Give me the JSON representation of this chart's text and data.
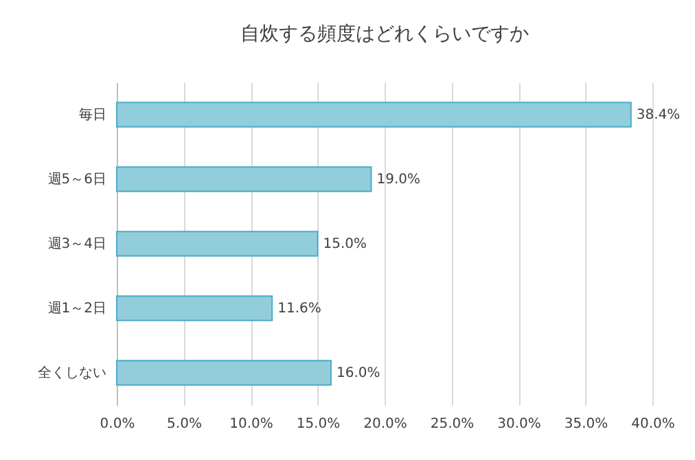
{
  "chart_data": {
    "type": "bar",
    "orientation": "horizontal",
    "title": "自炊する頻度はどれくらいですか",
    "categories": [
      "毎日",
      "週5～6日",
      "週3～4日",
      "週1～2日",
      "全くしない"
    ],
    "values": [
      38.4,
      19.0,
      15.0,
      11.6,
      16.0
    ],
    "color": "#92cddc",
    "value_labels": [
      "38.4%",
      "19.0%",
      "15.0%",
      "11.6%",
      "16.0%"
    ],
    "xlim": [
      0,
      40
    ],
    "xticks": [
      {
        "value": 0,
        "label": "0.0%"
      },
      {
        "value": 5,
        "label": "5.0%"
      },
      {
        "value": 10,
        "label": "10.0%"
      },
      {
        "value": 15,
        "label": "15.0%"
      },
      {
        "value": 20,
        "label": "20.0%"
      },
      {
        "value": 25,
        "label": "25.0%"
      },
      {
        "value": 30,
        "label": "30.0%"
      },
      {
        "value": 35,
        "label": "35.0%"
      },
      {
        "value": 40,
        "label": "40.0%"
      }
    ],
    "grid": "x"
  }
}
